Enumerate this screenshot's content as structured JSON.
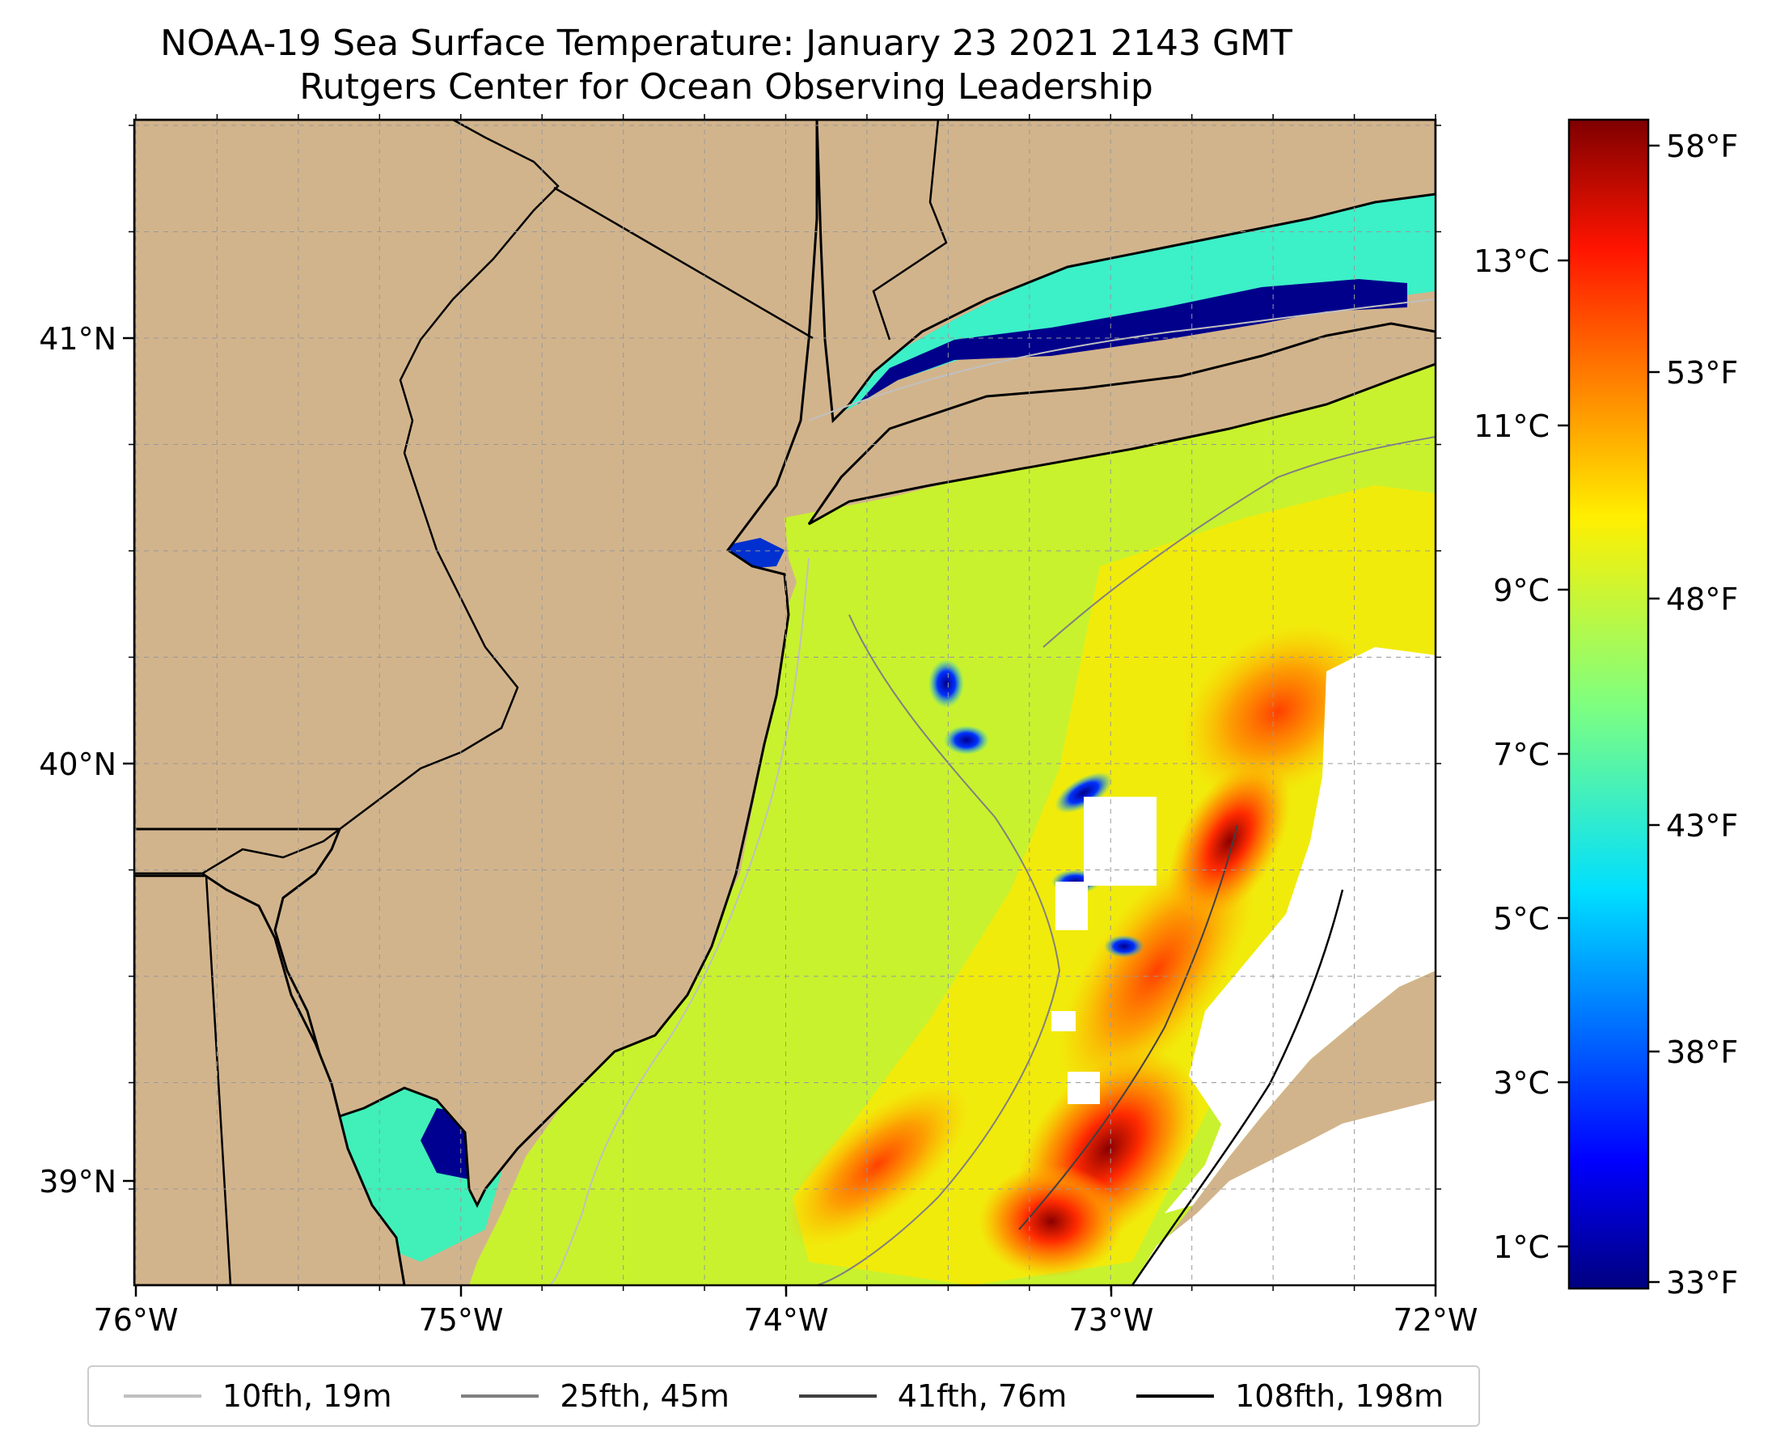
{
  "title": {
    "line1": "NOAA-19 Sea Surface Temperature: January 23 2021 2143 GMT",
    "line2": "Rutgers Center for Ocean Observing Leadership"
  },
  "map": {
    "x_ticks": [
      "76°W",
      "75°W",
      "74°W",
      "73°W",
      "72°W"
    ],
    "y_ticks": [
      "41°N",
      "40°N",
      "39°N"
    ],
    "land_color": "#d2b48c",
    "grid": true
  },
  "colorbar": {
    "celsius_ticks": [
      "13°C",
      "11°C",
      "9°C",
      "7°C",
      "5°C",
      "3°C",
      "1°C"
    ],
    "fahrenheit_ticks": [
      "58°F",
      "53°F",
      "48°F",
      "43°F",
      "38°F",
      "33°F"
    ],
    "colormap": "jet",
    "range_f": [
      33,
      59
    ]
  },
  "legend": {
    "items": [
      {
        "label": "10fth, 19m",
        "color": "#c0c0c0"
      },
      {
        "label": "25fth, 45m",
        "color": "#808080"
      },
      {
        "label": "41fth, 76m",
        "color": "#404040"
      },
      {
        "label": "108fth, 198m",
        "color": "#000000"
      }
    ]
  }
}
